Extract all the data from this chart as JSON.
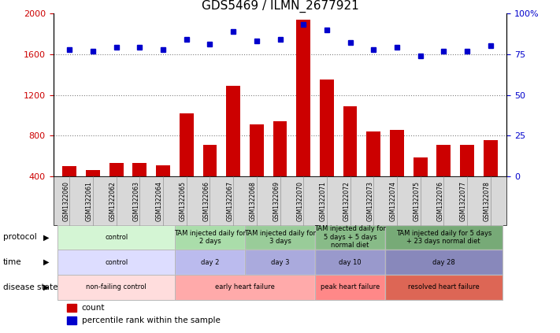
{
  "title": "GDS5469 / ILMN_2677921",
  "samples": [
    "GSM1322060",
    "GSM1322061",
    "GSM1322062",
    "GSM1322063",
    "GSM1322064",
    "GSM1322065",
    "GSM1322066",
    "GSM1322067",
    "GSM1322068",
    "GSM1322069",
    "GSM1322070",
    "GSM1322071",
    "GSM1322072",
    "GSM1322073",
    "GSM1322074",
    "GSM1322075",
    "GSM1322076",
    "GSM1322077",
    "GSM1322078"
  ],
  "counts": [
    500,
    460,
    530,
    530,
    510,
    1020,
    710,
    1290,
    910,
    940,
    1940,
    1350,
    1090,
    840,
    860,
    590,
    710,
    710,
    760
  ],
  "percentiles": [
    78,
    77,
    79,
    79,
    78,
    84,
    81,
    89,
    83,
    84,
    93,
    90,
    82,
    78,
    79,
    74,
    77,
    77,
    80
  ],
  "bar_color": "#cc0000",
  "dot_color": "#0000cc",
  "ylim_left": [
    400,
    2000
  ],
  "ylim_right": [
    0,
    100
  ],
  "yticks_left": [
    400,
    800,
    1200,
    1600,
    2000
  ],
  "yticks_right": [
    0,
    25,
    50,
    75,
    100
  ],
  "grid_vals": [
    800,
    1200,
    1600
  ],
  "protocol_groups": [
    {
      "label": "control",
      "start": 0,
      "end": 4,
      "color": "#d4f5d4"
    },
    {
      "label": "TAM injected daily for\n2 days",
      "start": 5,
      "end": 7,
      "color": "#aaddaa"
    },
    {
      "label": "TAM injected daily for\n3 days",
      "start": 8,
      "end": 10,
      "color": "#99cc99"
    },
    {
      "label": "TAM injected daily for\n5 days + 5 days\nnormal diet",
      "start": 11,
      "end": 13,
      "color": "#88bb88"
    },
    {
      "label": "TAM injected daily for 5 days\n+ 23 days normal diet",
      "start": 14,
      "end": 18,
      "color": "#77aa77"
    }
  ],
  "time_groups": [
    {
      "label": "control",
      "start": 0,
      "end": 4,
      "color": "#ddddff"
    },
    {
      "label": "day 2",
      "start": 5,
      "end": 7,
      "color": "#bbbbee"
    },
    {
      "label": "day 3",
      "start": 8,
      "end": 10,
      "color": "#aaaadd"
    },
    {
      "label": "day 10",
      "start": 11,
      "end": 13,
      "color": "#9999cc"
    },
    {
      "label": "day 28",
      "start": 14,
      "end": 18,
      "color": "#8888bb"
    }
  ],
  "disease_groups": [
    {
      "label": "non-failing control",
      "start": 0,
      "end": 4,
      "color": "#ffdddd"
    },
    {
      "label": "early heart failure",
      "start": 5,
      "end": 10,
      "color": "#ffaaaa"
    },
    {
      "label": "peak heart failure",
      "start": 11,
      "end": 13,
      "color": "#ff8888"
    },
    {
      "label": "resolved heart failure",
      "start": 14,
      "end": 18,
      "color": "#dd6655"
    }
  ],
  "row_labels": [
    "protocol",
    "time",
    "disease state"
  ],
  "legend_items": [
    {
      "color": "#cc0000",
      "label": "count"
    },
    {
      "color": "#0000cc",
      "label": "percentile rank within the sample"
    }
  ]
}
